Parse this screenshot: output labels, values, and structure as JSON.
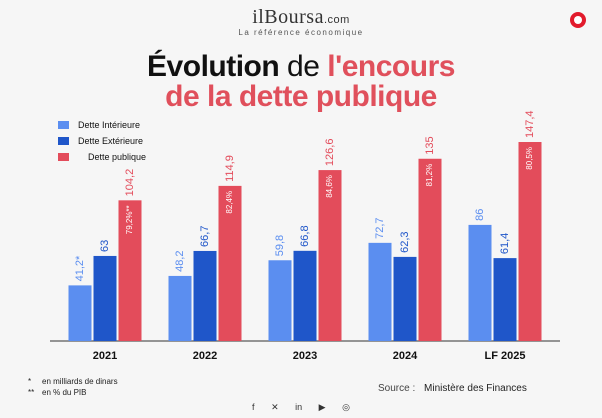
{
  "brand": {
    "name": "ilBoursa",
    "suffix": ".com",
    "tagline": "La référence économique"
  },
  "title": {
    "part1": "Évolution",
    "part2": "de",
    "part3": "l'encours",
    "line2": "de la dette publique"
  },
  "legend": [
    {
      "label": "Dette Intérieure",
      "color": "#5b8ef0"
    },
    {
      "label": "Dette Extérieure",
      "color": "#1f56c9"
    },
    {
      "label": "Dette publique",
      "color": "#e34c5b"
    }
  ],
  "notes": {
    "star1": "*",
    "star1_text": "en milliards de dinars",
    "star2": "**",
    "star2_text": "en % du PIB"
  },
  "source": {
    "label": "Source :",
    "value": "Ministère des Finances"
  },
  "social": [
    "f",
    "✕",
    "in",
    "▶",
    "◎"
  ],
  "chart_data": {
    "type": "bar",
    "categories": [
      "2021",
      "2022",
      "2023",
      "2024",
      "LF 2025"
    ],
    "series": [
      {
        "name": "Dette Intérieure",
        "color": "#5b8ef0",
        "values": [
          41.2,
          48.2,
          59.8,
          72.7,
          86
        ],
        "labels": [
          "41,2*",
          "48,2",
          "59,8",
          "72,7",
          "86"
        ]
      },
      {
        "name": "Dette Extérieure",
        "color": "#1f56c9",
        "values": [
          63,
          66.7,
          66.8,
          62.3,
          61.4
        ],
        "labels": [
          "63",
          "66,7",
          "66,8",
          "62,3",
          "61,4"
        ]
      },
      {
        "name": "Dette publique",
        "color": "#e34c5b",
        "values": [
          104.2,
          114.9,
          126.6,
          135,
          147.4
        ],
        "labels": [
          "104,2",
          "114,9",
          "126,6",
          "135",
          "147,4"
        ]
      }
    ],
    "pib_percent": [
      "79,2%**",
      "82,4%",
      "84,6%",
      "81,2%",
      "80,5%"
    ],
    "ylim": [
      0,
      150
    ]
  }
}
